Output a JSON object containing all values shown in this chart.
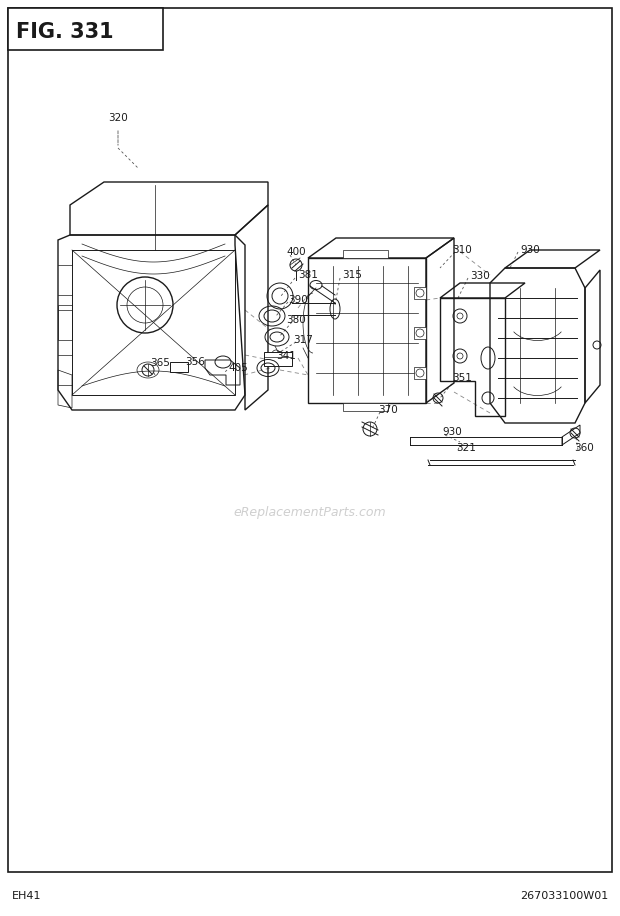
{
  "title": "FIG. 331",
  "footer_left": "EH41",
  "footer_right": "267033100W01",
  "watermark": "eReplacementParts.com",
  "bg_color": "#ffffff",
  "border_color": "#000000",
  "text_color": "#000000",
  "fig_width": 6.2,
  "fig_height": 9.16,
  "dpi": 100
}
